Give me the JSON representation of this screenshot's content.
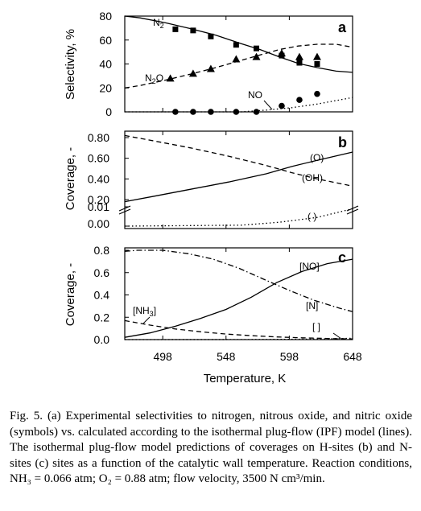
{
  "chart_data": [
    {
      "type": "line",
      "panel_label": "a",
      "ylabel": "Selectivity, %",
      "ylim": [
        0,
        80
      ],
      "yticks": [
        0,
        20,
        40,
        60,
        80
      ],
      "xlim": [
        468,
        648
      ],
      "series": [
        {
          "name": "N2",
          "label_text": "N",
          "label_sub": "2",
          "style": "solid",
          "x": [
            468,
            480,
            500,
            520,
            540,
            560,
            575,
            590,
            605,
            620,
            635,
            648
          ],
          "y": [
            80,
            78.5,
            74.5,
            69.5,
            64,
            57,
            52,
            46,
            40.5,
            37,
            34,
            33
          ]
        },
        {
          "name": "N2O",
          "label_text": "N",
          "label_sub": "2",
          "label_tail": "O",
          "style": "dashed",
          "x": [
            468,
            480,
            500,
            520,
            540,
            560,
            575,
            590,
            605,
            620,
            635,
            648
          ],
          "y": [
            20,
            22,
            26.5,
            31.5,
            37,
            43,
            47.5,
            52,
            55,
            56.5,
            56.5,
            54
          ]
        },
        {
          "name": "NO",
          "label_text": "NO",
          "style": "dotted",
          "x": [
            468,
            560,
            580,
            600,
            620,
            648
          ],
          "y": [
            0,
            0,
            1.5,
            3.5,
            6.5,
            12
          ]
        }
      ],
      "symbols": [
        {
          "name": "N2",
          "marker": "square",
          "x": [
            508,
            522,
            536,
            556,
            572,
            592,
            606,
            620
          ],
          "y": [
            69,
            68,
            63,
            56,
            53,
            47,
            41,
            40
          ]
        },
        {
          "name": "N2O",
          "marker": "triangle",
          "x": [
            504,
            522,
            536,
            556,
            572,
            592,
            606,
            620
          ],
          "y": [
            28,
            32,
            36,
            44,
            46,
            49,
            46,
            46
          ]
        },
        {
          "name": "NO",
          "marker": "circle",
          "x": [
            508,
            522,
            536,
            556,
            572,
            592,
            606,
            620
          ],
          "y": [
            0,
            0,
            0,
            0,
            0,
            5,
            10,
            15
          ]
        }
      ]
    },
    {
      "type": "line",
      "panel_label": "b",
      "ylabel": "Coverage, -",
      "yticks_upper": [
        "0.80",
        "0.60",
        "0.40",
        "0.20"
      ],
      "yticks_lower": [
        "0.01",
        "0.00"
      ],
      "ylim_upper": [
        0.2,
        0.8
      ],
      "ylim_lower": [
        0,
        0.01
      ],
      "series": [
        {
          "name": "(O)",
          "style": "solid",
          "x": [
            468,
            490,
            520,
            550,
            580,
            600,
            620,
            648
          ],
          "y": [
            0.18,
            0.23,
            0.3,
            0.37,
            0.45,
            0.52,
            0.58,
            0.66
          ]
        },
        {
          "name": "(OH)",
          "style": "dashed",
          "x": [
            468,
            490,
            520,
            550,
            580,
            600,
            620,
            648
          ],
          "y": [
            0.82,
            0.77,
            0.7,
            0.62,
            0.53,
            0.46,
            0.4,
            0.33
          ]
        },
        {
          "name": "( )",
          "style": "dotted",
          "axis": "lower",
          "x": [
            468,
            560,
            590,
            620,
            648
          ],
          "y": [
            0,
            0.0005,
            0.002,
            0.0045,
            0.009
          ]
        }
      ]
    },
    {
      "type": "line",
      "panel_label": "c",
      "ylabel": "Coverage, -",
      "ylim": [
        0,
        0.8
      ],
      "yticks": [
        "0.0",
        "0.2",
        "0.4",
        "0.6",
        "0.8"
      ],
      "xlim": [
        468,
        648
      ],
      "xticks": [
        "498",
        "548",
        "598",
        "648"
      ],
      "xtick_values": [
        498,
        548,
        598,
        648
      ],
      "xlabel": "Temperature, K",
      "series": [
        {
          "name": "[NO]",
          "style": "solid",
          "x": [
            468,
            488,
            508,
            528,
            548,
            568,
            588,
            608,
            628,
            648
          ],
          "y": [
            0.02,
            0.06,
            0.12,
            0.19,
            0.27,
            0.38,
            0.51,
            0.61,
            0.68,
            0.72
          ]
        },
        {
          "name": "[N]",
          "style": "dashdot",
          "x": [
            468,
            478,
            498,
            518,
            538,
            558,
            578,
            598,
            618,
            638,
            648
          ],
          "y": [
            0.79,
            0.8,
            0.8,
            0.77,
            0.72,
            0.64,
            0.54,
            0.44,
            0.35,
            0.28,
            0.25
          ]
        },
        {
          "name": "[NH3]",
          "label_text": "[NH",
          "label_sub": "3",
          "label_tail": "]",
          "style": "dashed",
          "x": [
            468,
            488,
            508,
            528,
            548,
            568,
            588,
            608,
            628,
            648
          ],
          "y": [
            0.17,
            0.13,
            0.095,
            0.07,
            0.05,
            0.035,
            0.024,
            0.016,
            0.01,
            0.006
          ]
        },
        {
          "name": "[ ]",
          "style": "dotted",
          "x": [
            468,
            560,
            600,
            630,
            648
          ],
          "y": [
            0,
            0.001,
            0.003,
            0.007,
            0.012
          ]
        }
      ]
    }
  ],
  "caption": "Fig. 5. (a) Experimental selectivities to nitrogen, nitrous oxide, and nitric oxide (symbols) vs. calculated according to the isothermal plug-flow (IPF) model (lines). The isothermal plug-flow model predictions of coverages on H-sites (b) and N-sites (c) sites as a function of the catalytic wall temperature. Reaction conditions, NH₃ = 0.066 atm; O₂ = 0.88 atm; flow velocity, 3500 N cm³/min."
}
